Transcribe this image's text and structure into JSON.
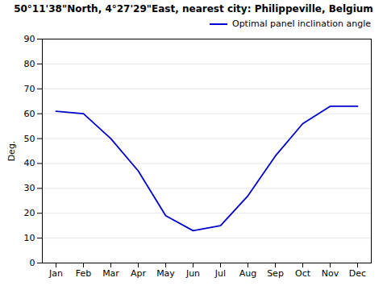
{
  "chart_data": {
    "type": "line",
    "title": "50°11'38\"North, 4°27'29\"East, nearest city: Philippeville, Belgium",
    "y_label": "Deg.",
    "categories": [
      "Jan",
      "Feb",
      "Mar",
      "Apr",
      "May",
      "Jun",
      "Jul",
      "Aug",
      "Sep",
      "Oct",
      "Nov",
      "Dec"
    ],
    "series": [
      {
        "name": "Optimal panel inclination angle",
        "color": "#0000cc",
        "values": [
          61,
          60,
          50,
          37,
          19,
          13,
          15,
          27,
          43,
          56,
          63,
          63
        ]
      }
    ],
    "ylim": [
      0,
      90
    ],
    "yticks": [
      0,
      10,
      20,
      30,
      40,
      50,
      60,
      70,
      80,
      90
    ],
    "grid": true,
    "legend": "upper right"
  }
}
